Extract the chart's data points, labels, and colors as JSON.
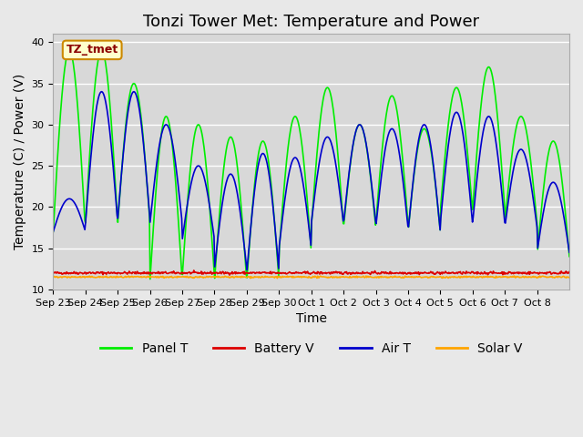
{
  "title": "Tonzi Tower Met: Temperature and Power",
  "ylabel": "Temperature (C) / Power (V)",
  "xlabel": "Time",
  "ylim": [
    10,
    41
  ],
  "yticks": [
    10,
    15,
    20,
    25,
    30,
    35,
    40
  ],
  "background_color": "#e8e8e8",
  "plot_bg_color": "#d8d8d8",
  "annotation_text": "TZ_tmet",
  "annotation_bg": "#ffffcc",
  "annotation_fg": "#8b0000",
  "annotation_edge": "#cc8800",
  "legend_labels": [
    "Panel T",
    "Battery V",
    "Air T",
    "Solar V"
  ],
  "legend_colors": [
    "#00ee00",
    "#dd0000",
    "#0000cc",
    "#ffa500"
  ],
  "line_colors": {
    "panel_t": "#00ee00",
    "battery_v": "#dd0000",
    "air_t": "#0000cc",
    "solar_v": "#ffa500"
  },
  "n_days": 16,
  "xtick_labels": [
    "Sep 23",
    "Sep 24",
    "Sep 25",
    "Sep 26",
    "Sep 27",
    "Sep 28",
    "Sep 29",
    "Sep 30",
    "Oct 1",
    "Oct 2",
    "Oct 3",
    "Oct 4",
    "Oct 5",
    "Oct 6",
    "Oct 7",
    "Oct 8"
  ],
  "panel_t_max": [
    39,
    39,
    35,
    31,
    30,
    28.5,
    28,
    31,
    34.5,
    30,
    33.5,
    29.5,
    34.5,
    37,
    31,
    28
  ],
  "panel_t_min": [
    17,
    18,
    18,
    11,
    11.5,
    11,
    11,
    14.5,
    17.5,
    17.5,
    18,
    17,
    19.5,
    19.5,
    18,
    14
  ],
  "air_t_max": [
    21,
    34,
    34,
    30,
    25,
    24,
    26.5,
    26,
    28.5,
    30,
    29.5,
    30,
    31.5,
    31,
    27,
    23
  ],
  "air_t_min": [
    17,
    18,
    18.5,
    18,
    16,
    12.5,
    12,
    15,
    18,
    18,
    17.5,
    17,
    18,
    18,
    17.5,
    14.5
  ],
  "battery_v_level": 12.0,
  "solar_v_level": 11.5,
  "title_fontsize": 13,
  "axis_fontsize": 10,
  "tick_fontsize": 8,
  "legend_fontsize": 10
}
